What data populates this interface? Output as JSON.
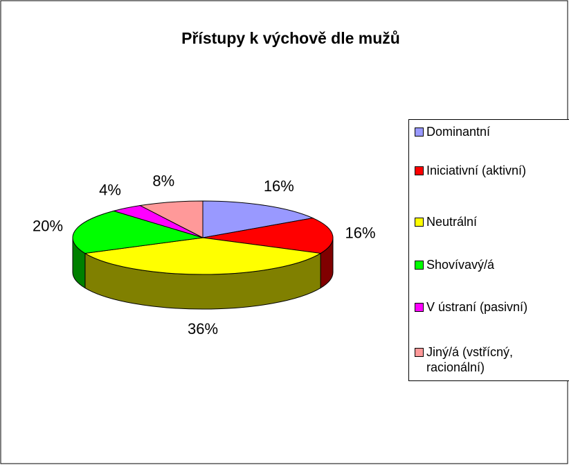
{
  "chart_data": {
    "type": "pie3d",
    "title": "Přístupy k výchově dle mužů",
    "categories": [
      "Dominantní",
      "Iniciativní (aktivní)",
      "Neutrální",
      "Shovívavý/á",
      "V ústraní (pasivní)",
      "Jiný/á (vstřícný, racionální)"
    ],
    "values": [
      16,
      16,
      36,
      20,
      4,
      8
    ],
    "value_labels": [
      "16%",
      "16%",
      "36%",
      "20%",
      "4%",
      "8%"
    ],
    "colors": [
      "#9999ff",
      "#ff0000",
      "#ffff00",
      "#00ff00",
      "#ff00ff",
      "#ff9999"
    ],
    "legend": "right"
  }
}
